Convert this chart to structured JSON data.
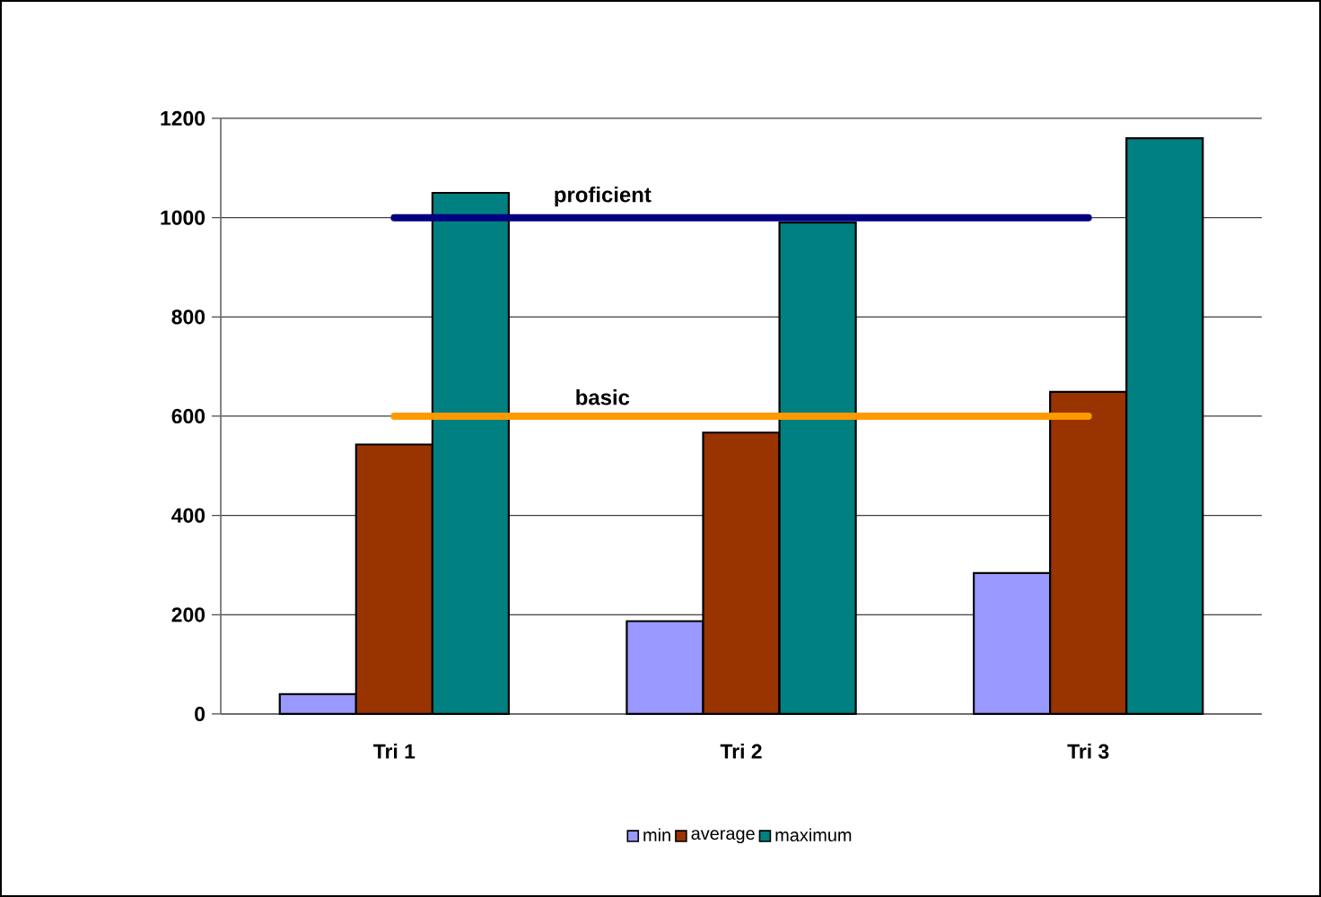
{
  "chart_data": {
    "type": "bar",
    "categories": [
      "Tri 1",
      "Tri 2",
      "Tri 3"
    ],
    "series": [
      {
        "name": "min",
        "color": "#9999ff",
        "values": [
          40,
          187,
          284
        ]
      },
      {
        "name": "average",
        "color": "#993300",
        "values": [
          543,
          567,
          649
        ]
      },
      {
        "name": "maximum",
        "color": "#008080",
        "values": [
          1050,
          990,
          1160
        ]
      },
      {
        "name": "proficient",
        "type": "line",
        "color": "#000080",
        "values": [
          1000,
          1000,
          1000
        ]
      },
      {
        "name": "basic",
        "type": "line",
        "color": "#ff9900",
        "values": [
          600,
          600,
          600
        ]
      }
    ],
    "ylim": [
      0,
      1200
    ],
    "yticks": [
      0,
      200,
      400,
      600,
      800,
      1000,
      1200
    ],
    "grid": "y",
    "legend": "bottom",
    "marker": "none"
  }
}
